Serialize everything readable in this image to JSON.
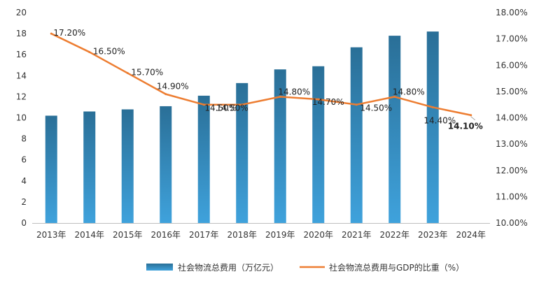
{
  "chart_data": {
    "type": "bar",
    "categories": [
      "2013年",
      "2014年",
      "2015年",
      "2016年",
      "2017年",
      "2018年",
      "2019年",
      "2020年",
      "2021年",
      "2022年",
      "2023年",
      "2024年"
    ],
    "series": [
      {
        "name": "社会物流总费用（万亿元）",
        "type": "bar",
        "axis": "left",
        "values": [
          10.2,
          10.6,
          10.8,
          11.1,
          12.1,
          13.3,
          14.6,
          14.9,
          16.7,
          17.8,
          18.2,
          null
        ]
      },
      {
        "name": "社会物流总费用与GDP的比重（%）",
        "type": "line",
        "axis": "right",
        "values": [
          17.2,
          16.5,
          15.7,
          14.9,
          14.5,
          14.5,
          14.8,
          14.7,
          14.5,
          14.8,
          14.4,
          14.1
        ],
        "labels": [
          "17.20%",
          "16.50%",
          "15.70%",
          "14.90%",
          "14.50%",
          "14.50%",
          "14.80%",
          "14.70%",
          "14.50%",
          "14.80%",
          "14.40%",
          "14.10%"
        ]
      }
    ],
    "y_left": {
      "min": 0,
      "max": 20,
      "step": 2,
      "ticks": [
        "0",
        "2",
        "4",
        "6",
        "8",
        "10",
        "12",
        "14",
        "16",
        "18",
        "20"
      ]
    },
    "y_right": {
      "min": 10,
      "max": 18,
      "step": 1,
      "ticks": [
        "10.00%",
        "11.00%",
        "12.00%",
        "13.00%",
        "14.00%",
        "15.00%",
        "16.00%",
        "17.00%",
        "18.00%"
      ]
    },
    "grid": false,
    "legend_position": "bottom",
    "colors": {
      "bar_top": "#2a6f97",
      "bar_bottom": "#3fa2dc",
      "line": "#ed7d31"
    }
  }
}
